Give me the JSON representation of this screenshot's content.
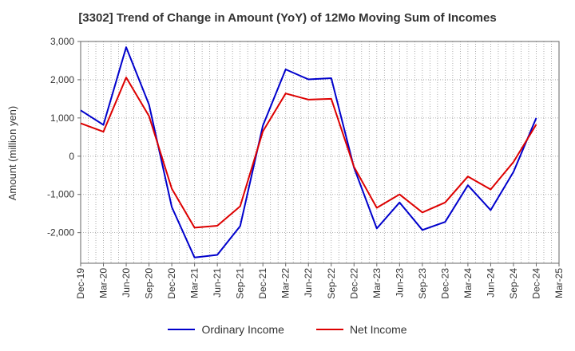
{
  "chart_data": {
    "type": "line",
    "title": "[3302]  Trend of Change in Amount (YoY) of 12Mo Moving Sum of Incomes",
    "xlabel": "",
    "ylabel": "Amount (million yen)",
    "ylim": [
      -2800,
      3000
    ],
    "yticks": [
      3000,
      2000,
      1000,
      0,
      -1000,
      -2000
    ],
    "ytick_labels": [
      "3,000",
      "2,000",
      "1,000",
      "0",
      "-1,000",
      "-2,000"
    ],
    "categories": [
      "Dec-19",
      "Mar-20",
      "Jun-20",
      "Sep-20",
      "Dec-20",
      "Mar-21",
      "Jun-21",
      "Sep-21",
      "Dec-21",
      "Mar-22",
      "Jun-22",
      "Sep-22",
      "Dec-22",
      "Mar-23",
      "Jun-23",
      "Sep-23",
      "Dec-23",
      "Mar-24",
      "Jun-24",
      "Sep-24",
      "Dec-24",
      "Mar-25"
    ],
    "grid": true,
    "legend_position": "bottom",
    "series": [
      {
        "name": "Ordinary Income",
        "color": "#0000cc",
        "values": [
          1200,
          820,
          2850,
          1350,
          -1330,
          -2650,
          -2580,
          -1830,
          800,
          2270,
          2010,
          2040,
          -300,
          -1890,
          -1210,
          -1930,
          -1720,
          -760,
          -1410,
          -410,
          1000,
          null
        ]
      },
      {
        "name": "Net Income",
        "color": "#dd0000",
        "values": [
          860,
          640,
          2060,
          1050,
          -850,
          -1870,
          -1820,
          -1310,
          650,
          1640,
          1480,
          1500,
          -280,
          -1350,
          -1000,
          -1470,
          -1210,
          -530,
          -870,
          -150,
          830,
          null
        ]
      }
    ]
  }
}
